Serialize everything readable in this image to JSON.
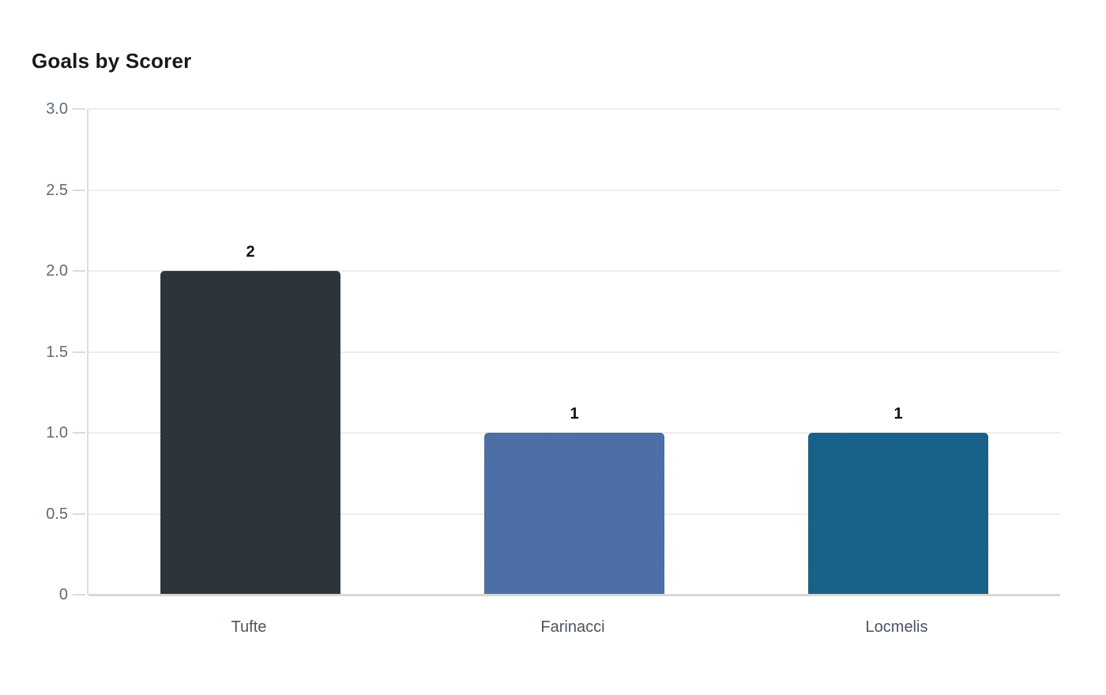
{
  "title": "Goals by Scorer",
  "chart_data": {
    "type": "bar",
    "title": "Goals by Scorer",
    "categories": [
      "Tufte",
      "Farinacci",
      "Locmelis"
    ],
    "values": [
      2,
      1,
      1
    ],
    "value_labels": [
      "2",
      "1",
      "1"
    ],
    "bar_colors": [
      "#2d343a",
      "#4c70a6",
      "#186289"
    ],
    "xlabel": "",
    "ylabel": "",
    "ylim": [
      0,
      3
    ],
    "yticks": [
      0,
      0.5,
      1.0,
      1.5,
      2.0,
      2.5,
      3.0
    ],
    "ytick_labels": [
      "0",
      "0.5",
      "1.0",
      "1.5",
      "2.0",
      "2.5",
      "3.0"
    ],
    "grid": true,
    "legend": false
  },
  "colors": {
    "background": "#ffffff",
    "title_text": "#15191d",
    "axis_line": "#dcdee0",
    "gridline": "#ededee",
    "baseline": "#d6d8da",
    "tick_label": "#5f6b76",
    "category_label": "#4a545e",
    "value_label": "#111111"
  }
}
